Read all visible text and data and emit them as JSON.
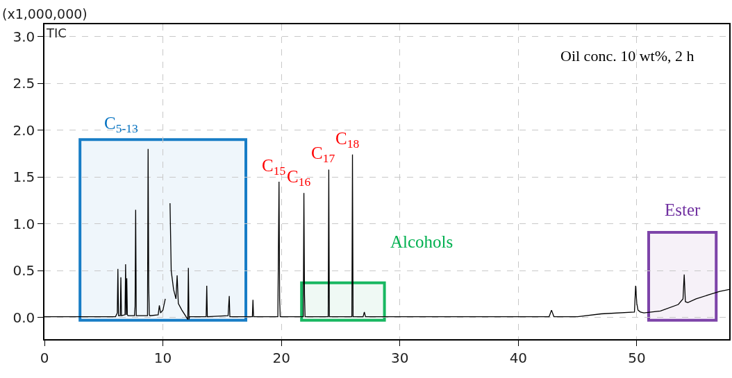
{
  "chart_data": {
    "type": "line",
    "ylabel": "(x1,000,000)",
    "xlim": [
      0,
      57.8
    ],
    "ylim": [
      -0.23,
      3.13
    ],
    "xticks": [
      0,
      10,
      20,
      30,
      40,
      50
    ],
    "yticks": [
      {
        "value": 0,
        "label": "0.0"
      },
      {
        "value": 0.5,
        "label": "0.5"
      },
      {
        "value": 1,
        "label": "1.0"
      },
      {
        "value": 1.5,
        "label": "1.5"
      },
      {
        "value": 2,
        "label": "2.0"
      },
      {
        "value": 2.5,
        "label": "2.5"
      },
      {
        "value": 3,
        "label": "3.0"
      }
    ],
    "grid": true,
    "series": [
      {
        "color": "#000000",
        "x": [
          0,
          6.0,
          6.15,
          6.2,
          6.25,
          6.4,
          6.45,
          6.5,
          6.8,
          6.85,
          6.9,
          6.95,
          7.0,
          7.05,
          7.6,
          7.65,
          7.7,
          7.75,
          8.7,
          8.75,
          8.8,
          8.85,
          8.9,
          9.6,
          9.7,
          9.8,
          10.0,
          10.2,
          10.3,
          10.45,
          10.6,
          10.7,
          10.9,
          11.1,
          11.2,
          11.3,
          11.6,
          11.9,
          12.1,
          12.15,
          12.2,
          12.25,
          13.65,
          13.7,
          13.75,
          15.5,
          15.6,
          15.65,
          17.55,
          17.6,
          17.65,
          19.7,
          19.8,
          19.85,
          19.9,
          21.85,
          21.9,
          21.95,
          22.0,
          23.95,
          24.0,
          24.05,
          25.95,
          26.0,
          26.05,
          26.9,
          27.0,
          27.1,
          42.6,
          42.8,
          43.0,
          45.0,
          47.0,
          49.8,
          49.9,
          50.0,
          50.1,
          50.3,
          50.6,
          52.0,
          53.5,
          53.9,
          54.0,
          54.1,
          54.3,
          55.0,
          56.0,
          57.0,
          57.8
        ],
        "values": [
          0.01,
          0.01,
          0.05,
          0.52,
          0.02,
          0.02,
          0.43,
          0.02,
          0.03,
          0.57,
          0.03,
          0.42,
          0.03,
          0.02,
          0.02,
          0.12,
          1.15,
          0.02,
          0.02,
          1.8,
          0.35,
          0.03,
          0.02,
          0.03,
          0.13,
          0.05,
          0.08,
          0.2,
          null,
          null,
          1.22,
          0.5,
          0.3,
          0.2,
          0.45,
          0.15,
          0.08,
          0.02,
          -0.02,
          0.53,
          -0.02,
          0.01,
          0.01,
          0.34,
          0.01,
          0.02,
          0.23,
          0.01,
          0.01,
          0.19,
          0.01,
          0.01,
          1.45,
          0.2,
          0.01,
          0.01,
          1.33,
          0.25,
          0.01,
          0.01,
          1.58,
          0.01,
          0.01,
          1.74,
          0.01,
          0.01,
          0.06,
          0.01,
          0.01,
          0.08,
          0.01,
          0.01,
          0.04,
          0.06,
          0.34,
          0.15,
          0.08,
          0.06,
          0.05,
          0.07,
          0.14,
          0.2,
          0.46,
          0.17,
          0.16,
          0.2,
          0.24,
          0.28,
          0.3
        ]
      }
    ],
    "bands": [
      {
        "axis": "x",
        "from": 3,
        "to": 17,
        "label": "C$_{5-13}$",
        "color": "#0070c0"
      },
      {
        "axis": "x",
        "from": 21.7,
        "to": 28.7,
        "label": "Alcohols",
        "color": "#00b050"
      },
      {
        "axis": "x",
        "from": 51.0,
        "to": 56.7,
        "label": "Ester",
        "color": "#7030a0"
      }
    ],
    "annotations": [
      "TIC",
      "Oil conc. 10 wt%, 2 h",
      {
        "text": "C$_{15}$",
        "x": 19.8,
        "y": 1.45
      },
      {
        "text": "C$_{16}$",
        "x": 21.9,
        "y": 1.33
      },
      {
        "text": "C$_{17}$",
        "x": 24.0,
        "y": 1.58
      },
      {
        "text": "C$_{18}$",
        "x": 26.0,
        "y": 1.74
      }
    ]
  }
}
